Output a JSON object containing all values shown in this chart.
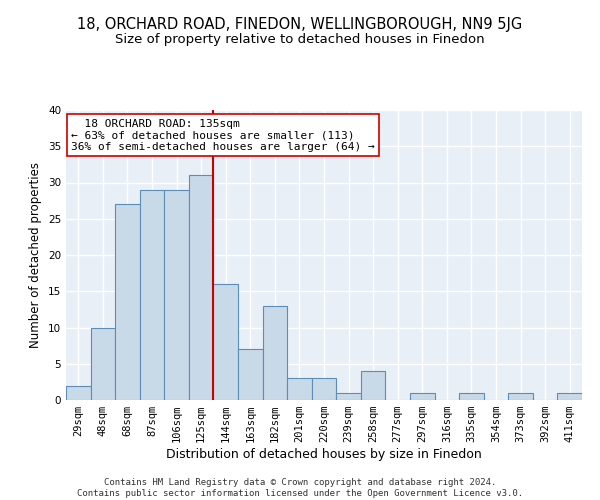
{
  "title": "18, ORCHARD ROAD, FINEDON, WELLINGBOROUGH, NN9 5JG",
  "subtitle": "Size of property relative to detached houses in Finedon",
  "xlabel": "Distribution of detached houses by size in Finedon",
  "ylabel": "Number of detached properties",
  "categories": [
    "29sqm",
    "48sqm",
    "68sqm",
    "87sqm",
    "106sqm",
    "125sqm",
    "144sqm",
    "163sqm",
    "182sqm",
    "201sqm",
    "220sqm",
    "239sqm",
    "258sqm",
    "277sqm",
    "297sqm",
    "316sqm",
    "335sqm",
    "354sqm",
    "373sqm",
    "392sqm",
    "411sqm"
  ],
  "values": [
    2,
    10,
    27,
    29,
    29,
    31,
    16,
    7,
    13,
    3,
    3,
    1,
    4,
    0,
    1,
    0,
    1,
    0,
    1,
    0,
    1
  ],
  "bar_color": "#c8d9e8",
  "bar_edge_color": "#5b8db8",
  "bar_edge_width": 0.8,
  "ylim": [
    0,
    40
  ],
  "yticks": [
    0,
    5,
    10,
    15,
    20,
    25,
    30,
    35,
    40
  ],
  "property_line_x": 6.0,
  "property_line_color": "#cc0000",
  "annotation_text": "  18 ORCHARD ROAD: 135sqm\n← 63% of detached houses are smaller (113)\n36% of semi-detached houses are larger (64) →",
  "annotation_box_color": "#ffffff",
  "annotation_box_edge_color": "#cc0000",
  "footer_text": "Contains HM Land Registry data © Crown copyright and database right 2024.\nContains public sector information licensed under the Open Government Licence v3.0.",
  "fig_bg_color": "#ffffff",
  "plot_bg_color": "#e8eff6",
  "grid_color": "#ffffff",
  "title_fontsize": 10.5,
  "subtitle_fontsize": 9.5,
  "xlabel_fontsize": 9,
  "ylabel_fontsize": 8.5,
  "tick_fontsize": 7.5,
  "annotation_fontsize": 8,
  "footer_fontsize": 6.5
}
